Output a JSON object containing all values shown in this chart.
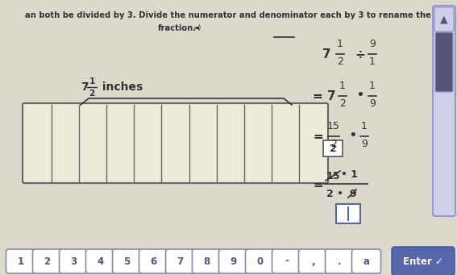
{
  "bg_color": "#ddd8cc",
  "title_line1": "an both be divided by 3. Divide the numerator and denominator each by 3 to rename the",
  "title_line2": "fraction.",
  "ruler_label_whole": "7",
  "ruler_label_num": "1",
  "ruler_label_den": "2",
  "ruler_label_suffix": " inches",
  "ruler_cols": 11,
  "scrollbar_bg": "#d0cfe8",
  "scrollbar_border": "#9999cc",
  "scrollbar_thumb": "#555577",
  "enter_btn_color": "#5566aa",
  "num_buttons": [
    "1",
    "2",
    "3",
    "4",
    "5",
    "6",
    "7",
    "8",
    "9",
    "0",
    "-",
    ",",
    ".",
    "a"
  ],
  "font_color": "#333333",
  "dash_line": true,
  "bg_bottom": "#f0ece0"
}
